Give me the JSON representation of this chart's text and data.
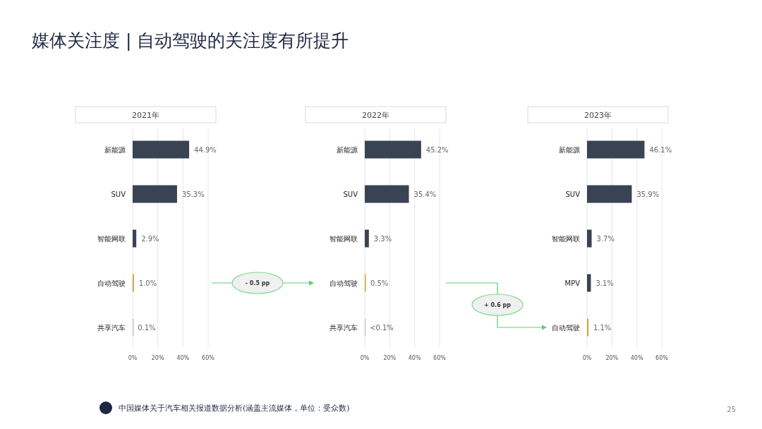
{
  "chart_data": [
    {
      "type": "bar",
      "orientation": "horizontal",
      "title": "2021年",
      "categories": [
        "新能源",
        "SUV",
        "智能网联",
        "自动驾驶",
        "共享汽车"
      ],
      "values": [
        44.9,
        35.3,
        2.9,
        1.0,
        0.1
      ],
      "colors": [
        "#3a4354",
        "#3a4354",
        "#3a4354",
        "#c9a13b",
        "#c4c8d0"
      ],
      "xlim": [
        0,
        60
      ],
      "xticks": [
        {
          "value": 0,
          "label": "0%"
        },
        {
          "value": 20,
          "label": "20%"
        },
        {
          "value": 40,
          "label": "40%"
        },
        {
          "value": 60,
          "label": "60%"
        }
      ],
      "grid": "x",
      "value_labels": [
        "44.9%",
        "35.3%",
        "2.9%",
        "1.0%",
        "0.1%"
      ],
      "annotations": [
        "媒体关注度 | 自动驾驶的关注度有所提升",
        "中国媒体关于汽车相关报道数据分析(涵盖主流媒体，单位：受众数)",
        "- 0.5 pp"
      ]
    },
    {
      "type": "bar",
      "orientation": "horizontal",
      "title": "2022年",
      "categories": [
        "新能源",
        "SUV",
        "智能网联",
        "自动驾驶",
        "共享汽车"
      ],
      "values": [
        45.2,
        35.4,
        3.3,
        0.5,
        0.05
      ],
      "colors": [
        "#3a4354",
        "#3a4354",
        "#3a4354",
        "#c9a13b",
        "#c4c8d0"
      ],
      "xlim": [
        0,
        60
      ],
      "xticks": [
        {
          "value": 0,
          "label": "0%"
        },
        {
          "value": 20,
          "label": "20%"
        },
        {
          "value": 40,
          "label": "40%"
        },
        {
          "value": 60,
          "label": "60%"
        }
      ],
      "grid": "x",
      "value_labels": [
        "45.2%",
        "35.4%",
        "3.3%",
        "0.5%",
        "<0.1%"
      ],
      "annotations": [
        "+ 0.6 pp"
      ]
    },
    {
      "type": "bar",
      "orientation": "horizontal",
      "title": "2023年",
      "categories": [
        "新能源",
        "SUV",
        "智能网联",
        "MPV",
        "自动驾驶"
      ],
      "values": [
        46.1,
        35.9,
        3.7,
        3.1,
        1.1
      ],
      "colors": [
        "#3a4354",
        "#3a4354",
        "#3a4354",
        "#3a4354",
        "#c9a13b"
      ],
      "xlim": [
        0,
        60
      ],
      "xticks": [
        {
          "value": 0,
          "label": "0%"
        },
        {
          "value": 20,
          "label": "20%"
        },
        {
          "value": 40,
          "label": "40%"
        },
        {
          "value": 60,
          "label": "60%"
        }
      ],
      "grid": "x",
      "value_labels": [
        "46.1%",
        "35.9%",
        "3.7%",
        "3.1%",
        "1.1%"
      ],
      "annotations": [
        "25"
      ]
    }
  ]
}
